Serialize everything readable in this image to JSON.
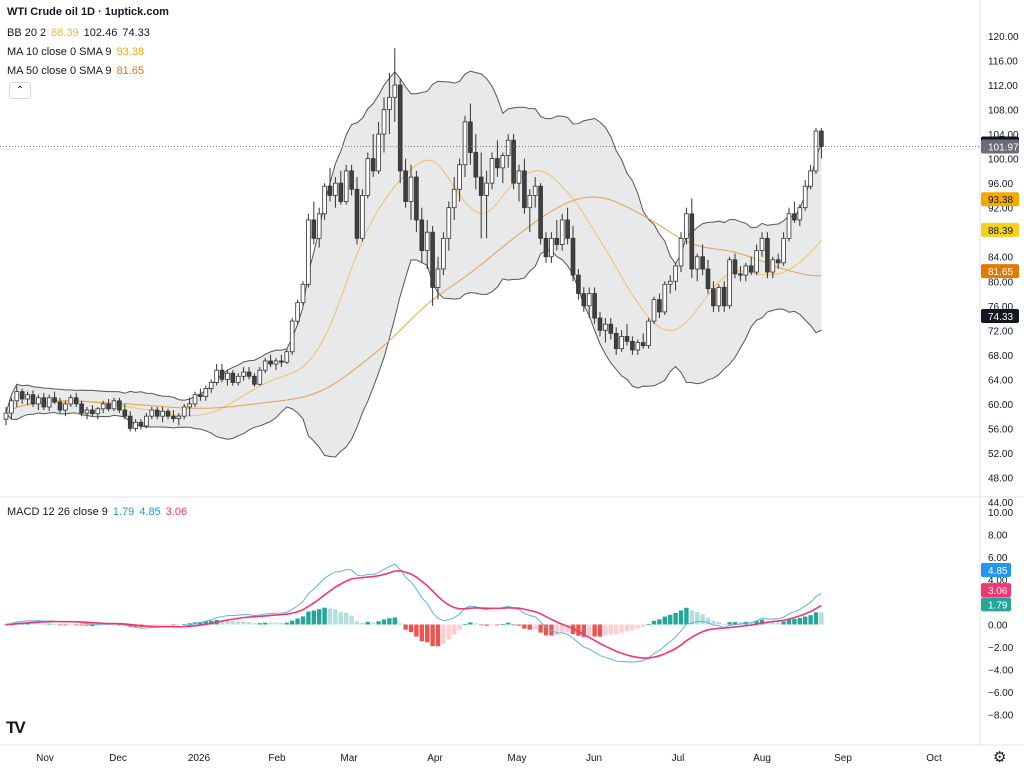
{
  "header": {
    "title": "WTI Crude oil  1D · 1uptick.com"
  },
  "legends": {
    "bb": {
      "name": "BB 20 2",
      "values": [
        "88.39",
        "102.46",
        "74.33"
      ],
      "colors": [
        "#f0b643",
        "#131722",
        "#131722"
      ]
    },
    "ma10": {
      "name": "MA 10 close 0 SMA 9",
      "value": "93.38",
      "color": "#f2a900"
    },
    "ma50": {
      "name": "MA 50 close 0 SMA 9",
      "value": "81.65",
      "color": "#e07b00"
    },
    "macd": {
      "name": "MACD 12 26 close 9",
      "values": [
        "1.79",
        "4.85",
        "3.06"
      ],
      "colors": [
        "#26a69a",
        "#2196f3",
        "#f23672"
      ]
    }
  },
  "controls": {
    "collapse_glyph": "⌃"
  },
  "branding": {
    "logo_text": "TV",
    "settings_icon": "gear-icon"
  },
  "colors": {
    "up": "#ffffff",
    "down": "#404040",
    "wick": "#333333",
    "bb_fill": "#e4e5e6",
    "bb_line": "#555555",
    "ma10": "#f2c061",
    "ma50": "#e3a14d",
    "macd": "#5ab4ea",
    "signal": "#f23672",
    "hist_up_strong": "#26a69a",
    "hist_up_weak": "#b2dfdb",
    "hist_down_strong": "#ef5350",
    "hist_down_weak": "#ffcdd2"
  },
  "chart_data": [
    {
      "type": "candlestick",
      "title": "WTI Crude oil 1D",
      "y_ticks": [
        "120.00",
        "116.00",
        "112.00",
        "108.00",
        "104.00",
        "100.00",
        "96.00",
        "92.00",
        "88.00",
        "84.00",
        "80.00",
        "76.00",
        "72.00",
        "68.00",
        "64.00",
        "60.00",
        "56.00",
        "52.00",
        "48.00",
        "44.00"
      ],
      "ylim": [
        44,
        120
      ],
      "x_ticks": [
        "Nov",
        "Dec",
        "2026",
        "Feb",
        "Mar",
        "Apr",
        "May",
        "Jun",
        "Jul",
        "Aug",
        "Sep",
        "Oct"
      ],
      "price_labels": [
        {
          "text": "102.46",
          "value": 102.46,
          "bg": "#131722",
          "fg": "#ffffff"
        },
        {
          "text": "101.97",
          "value": 101.97,
          "bg": "#6a6d78",
          "fg": "#ffffff"
        },
        {
          "text": "93.38",
          "value": 93.38,
          "bg": "#f2a900",
          "fg": "#131722"
        },
        {
          "text": "88.39",
          "value": 88.39,
          "bg": "#f5d11d",
          "fg": "#131722"
        },
        {
          "text": "81.65",
          "value": 81.65,
          "bg": "#e07b00",
          "fg": "#ffffff"
        },
        {
          "text": "74.33",
          "value": 74.33,
          "bg": "#131722",
          "fg": "#ffffff"
        }
      ],
      "last_close": 101.97,
      "candles": [
        {
          "o": 57.5,
          "h": 59.5,
          "l": 56.5,
          "c": 58.5
        },
        {
          "o": 58.5,
          "h": 61.0,
          "l": 57.5,
          "c": 60.5
        },
        {
          "o": 60.5,
          "h": 63.0,
          "l": 59.5,
          "c": 62.0
        },
        {
          "o": 62.0,
          "h": 62.5,
          "l": 60.0,
          "c": 60.8
        },
        {
          "o": 60.8,
          "h": 62.0,
          "l": 59.8,
          "c": 61.5
        },
        {
          "o": 61.5,
          "h": 62.2,
          "l": 59.5,
          "c": 60.0
        },
        {
          "o": 60.0,
          "h": 61.5,
          "l": 59.0,
          "c": 61.0
        },
        {
          "o": 61.0,
          "h": 61.8,
          "l": 59.0,
          "c": 59.5
        },
        {
          "o": 59.5,
          "h": 61.5,
          "l": 58.8,
          "c": 61.0
        },
        {
          "o": 61.0,
          "h": 62.0,
          "l": 60.0,
          "c": 60.3
        },
        {
          "o": 60.3,
          "h": 61.0,
          "l": 58.5,
          "c": 59.0
        },
        {
          "o": 59.0,
          "h": 60.5,
          "l": 58.0,
          "c": 60.0
        },
        {
          "o": 60.0,
          "h": 61.5,
          "l": 59.5,
          "c": 61.0
        },
        {
          "o": 61.0,
          "h": 61.8,
          "l": 59.5,
          "c": 60.0
        },
        {
          "o": 60.0,
          "h": 60.5,
          "l": 58.0,
          "c": 58.5
        },
        {
          "o": 58.5,
          "h": 59.5,
          "l": 57.5,
          "c": 59.0
        },
        {
          "o": 59.0,
          "h": 59.8,
          "l": 58.0,
          "c": 58.4
        },
        {
          "o": 58.4,
          "h": 59.5,
          "l": 57.5,
          "c": 59.2
        },
        {
          "o": 59.2,
          "h": 60.5,
          "l": 58.5,
          "c": 60.0
        },
        {
          "o": 60.0,
          "h": 60.8,
          "l": 58.8,
          "c": 59.2
        },
        {
          "o": 59.2,
          "h": 61.0,
          "l": 58.8,
          "c": 60.5
        },
        {
          "o": 60.5,
          "h": 61.0,
          "l": 58.5,
          "c": 59.0
        },
        {
          "o": 59.0,
          "h": 60.0,
          "l": 57.5,
          "c": 58.0
        },
        {
          "o": 58.0,
          "h": 58.8,
          "l": 55.5,
          "c": 56.0
        },
        {
          "o": 56.0,
          "h": 57.5,
          "l": 55.5,
          "c": 57.0
        },
        {
          "o": 57.0,
          "h": 57.5,
          "l": 55.8,
          "c": 56.4
        },
        {
          "o": 56.4,
          "h": 58.5,
          "l": 56.0,
          "c": 58.0
        },
        {
          "o": 58.0,
          "h": 59.5,
          "l": 57.5,
          "c": 59.0
        },
        {
          "o": 59.0,
          "h": 59.5,
          "l": 57.5,
          "c": 58.0
        },
        {
          "o": 58.0,
          "h": 59.5,
          "l": 57.0,
          "c": 58.8
        },
        {
          "o": 58.8,
          "h": 59.2,
          "l": 57.5,
          "c": 58.0
        },
        {
          "o": 58.0,
          "h": 59.0,
          "l": 57.0,
          "c": 57.6
        },
        {
          "o": 57.6,
          "h": 58.5,
          "l": 56.5,
          "c": 58.0
        },
        {
          "o": 58.0,
          "h": 60.0,
          "l": 57.5,
          "c": 59.5
        },
        {
          "o": 59.5,
          "h": 61.0,
          "l": 58.0,
          "c": 60.0
        },
        {
          "o": 60.0,
          "h": 62.0,
          "l": 59.5,
          "c": 61.5
        },
        {
          "o": 61.5,
          "h": 62.5,
          "l": 60.5,
          "c": 61.2
        },
        {
          "o": 61.2,
          "h": 63.0,
          "l": 60.5,
          "c": 62.5
        },
        {
          "o": 62.5,
          "h": 64.0,
          "l": 61.8,
          "c": 63.5
        },
        {
          "o": 63.5,
          "h": 66.5,
          "l": 63.0,
          "c": 65.5
        },
        {
          "o": 65.5,
          "h": 66.5,
          "l": 63.5,
          "c": 64.0
        },
        {
          "o": 64.0,
          "h": 65.5,
          "l": 63.0,
          "c": 65.0
        },
        {
          "o": 65.0,
          "h": 65.5,
          "l": 63.0,
          "c": 63.5
        },
        {
          "o": 63.5,
          "h": 65.0,
          "l": 63.0,
          "c": 64.5
        },
        {
          "o": 64.5,
          "h": 66.0,
          "l": 63.8,
          "c": 65.2
        },
        {
          "o": 65.2,
          "h": 66.0,
          "l": 64.0,
          "c": 64.5
        },
        {
          "o": 64.5,
          "h": 65.0,
          "l": 62.8,
          "c": 63.2
        },
        {
          "o": 63.2,
          "h": 66.0,
          "l": 63.0,
          "c": 65.5
        },
        {
          "o": 65.5,
          "h": 67.5,
          "l": 65.0,
          "c": 67.0
        },
        {
          "o": 67.0,
          "h": 68.0,
          "l": 66.0,
          "c": 66.5
        },
        {
          "o": 66.5,
          "h": 67.5,
          "l": 65.5,
          "c": 67.0
        },
        {
          "o": 67.0,
          "h": 68.0,
          "l": 66.0,
          "c": 66.8
        },
        {
          "o": 66.8,
          "h": 69.0,
          "l": 66.5,
          "c": 68.5
        },
        {
          "o": 68.5,
          "h": 74.0,
          "l": 68.0,
          "c": 73.5
        },
        {
          "o": 73.5,
          "h": 77.0,
          "l": 73.0,
          "c": 76.5
        },
        {
          "o": 76.5,
          "h": 80.0,
          "l": 76.0,
          "c": 79.5
        },
        {
          "o": 79.5,
          "h": 91.0,
          "l": 79.0,
          "c": 90.0
        },
        {
          "o": 90.0,
          "h": 93.0,
          "l": 86.0,
          "c": 87.0
        },
        {
          "o": 87.0,
          "h": 92.0,
          "l": 85.5,
          "c": 91.0
        },
        {
          "o": 91.0,
          "h": 96.0,
          "l": 90.0,
          "c": 95.5
        },
        {
          "o": 95.5,
          "h": 98.5,
          "l": 93.0,
          "c": 94.0
        },
        {
          "o": 94.0,
          "h": 97.0,
          "l": 92.0,
          "c": 96.0
        },
        {
          "o": 96.0,
          "h": 98.0,
          "l": 92.5,
          "c": 93.0
        },
        {
          "o": 93.0,
          "h": 99.0,
          "l": 92.5,
          "c": 98.0
        },
        {
          "o": 98.0,
          "h": 99.0,
          "l": 94.0,
          "c": 95.0
        },
        {
          "o": 95.0,
          "h": 97.0,
          "l": 86.0,
          "c": 87.0
        },
        {
          "o": 87.0,
          "h": 95.0,
          "l": 86.5,
          "c": 94.0
        },
        {
          "o": 94.0,
          "h": 101.0,
          "l": 93.5,
          "c": 100.0
        },
        {
          "o": 100.0,
          "h": 104.0,
          "l": 97.0,
          "c": 98.0
        },
        {
          "o": 98.0,
          "h": 106.0,
          "l": 97.5,
          "c": 104.0
        },
        {
          "o": 104.0,
          "h": 110.0,
          "l": 101.0,
          "c": 108.0
        },
        {
          "o": 108.0,
          "h": 114.0,
          "l": 104.0,
          "c": 110.0
        },
        {
          "o": 110.0,
          "h": 118.0,
          "l": 106.0,
          "c": 112.0
        },
        {
          "o": 112.0,
          "h": 113.0,
          "l": 96.0,
          "c": 98.0
        },
        {
          "o": 98.0,
          "h": 100.0,
          "l": 92.0,
          "c": 93.0
        },
        {
          "o": 93.0,
          "h": 99.0,
          "l": 90.0,
          "c": 97.0
        },
        {
          "o": 97.0,
          "h": 98.0,
          "l": 88.0,
          "c": 90.0
        },
        {
          "o": 90.0,
          "h": 92.0,
          "l": 83.0,
          "c": 85.0
        },
        {
          "o": 85.0,
          "h": 90.0,
          "l": 82.0,
          "c": 88.0
        },
        {
          "o": 88.0,
          "h": 89.0,
          "l": 76.0,
          "c": 79.0
        },
        {
          "o": 79.0,
          "h": 84.0,
          "l": 77.0,
          "c": 82.0
        },
        {
          "o": 82.0,
          "h": 88.0,
          "l": 81.0,
          "c": 87.0
        },
        {
          "o": 87.0,
          "h": 93.0,
          "l": 85.0,
          "c": 92.0
        },
        {
          "o": 92.0,
          "h": 97.0,
          "l": 90.0,
          "c": 95.0
        },
        {
          "o": 95.0,
          "h": 100.0,
          "l": 93.0,
          "c": 99.0
        },
        {
          "o": 99.0,
          "h": 107.0,
          "l": 97.0,
          "c": 106.0
        },
        {
          "o": 106.0,
          "h": 109.0,
          "l": 99.0,
          "c": 101.0
        },
        {
          "o": 101.0,
          "h": 104.0,
          "l": 95.0,
          "c": 97.0
        },
        {
          "o": 97.0,
          "h": 101.0,
          "l": 87.0,
          "c": 94.0
        },
        {
          "o": 94.0,
          "h": 98.0,
          "l": 87.0,
          "c": 96.0
        },
        {
          "o": 96.0,
          "h": 101.0,
          "l": 95.0,
          "c": 100.0
        },
        {
          "o": 100.0,
          "h": 103.0,
          "l": 97.0,
          "c": 98.5
        },
        {
          "o": 98.5,
          "h": 101.0,
          "l": 96.0,
          "c": 100.5
        },
        {
          "o": 100.5,
          "h": 104.0,
          "l": 98.5,
          "c": 103.0
        },
        {
          "o": 103.0,
          "h": 104.0,
          "l": 95.0,
          "c": 96.0
        },
        {
          "o": 96.0,
          "h": 99.0,
          "l": 93.0,
          "c": 98.0
        },
        {
          "o": 98.0,
          "h": 100.0,
          "l": 91.0,
          "c": 92.0
        },
        {
          "o": 92.0,
          "h": 95.0,
          "l": 88.0,
          "c": 94.0
        },
        {
          "o": 94.0,
          "h": 97.0,
          "l": 92.0,
          "c": 95.5
        },
        {
          "o": 95.5,
          "h": 96.0,
          "l": 86.0,
          "c": 87.0
        },
        {
          "o": 87.0,
          "h": 88.0,
          "l": 83.0,
          "c": 84.0
        },
        {
          "o": 84.0,
          "h": 88.0,
          "l": 83.0,
          "c": 87.0
        },
        {
          "o": 87.0,
          "h": 90.0,
          "l": 85.0,
          "c": 86.0
        },
        {
          "o": 86.0,
          "h": 91.0,
          "l": 85.0,
          "c": 90.0
        },
        {
          "o": 90.0,
          "h": 92.0,
          "l": 86.0,
          "c": 87.0
        },
        {
          "o": 87.0,
          "h": 89.0,
          "l": 80.0,
          "c": 81.0
        },
        {
          "o": 81.0,
          "h": 82.0,
          "l": 77.0,
          "c": 78.0
        },
        {
          "o": 78.0,
          "h": 79.0,
          "l": 75.0,
          "c": 76.0
        },
        {
          "o": 76.0,
          "h": 79.0,
          "l": 74.0,
          "c": 78.0
        },
        {
          "o": 78.0,
          "h": 79.0,
          "l": 73.0,
          "c": 74.0
        },
        {
          "o": 74.0,
          "h": 75.0,
          "l": 71.0,
          "c": 72.0
        },
        {
          "o": 72.0,
          "h": 74.0,
          "l": 70.0,
          "c": 73.0
        },
        {
          "o": 73.0,
          "h": 74.0,
          "l": 70.5,
          "c": 71.5
        },
        {
          "o": 71.5,
          "h": 72.5,
          "l": 68.0,
          "c": 69.0
        },
        {
          "o": 69.0,
          "h": 72.0,
          "l": 68.5,
          "c": 71.0
        },
        {
          "o": 71.0,
          "h": 73.0,
          "l": 69.5,
          "c": 70.2
        },
        {
          "o": 70.2,
          "h": 71.0,
          "l": 68.0,
          "c": 68.8
        },
        {
          "o": 68.8,
          "h": 70.5,
          "l": 68.0,
          "c": 70.0
        },
        {
          "o": 70.0,
          "h": 71.5,
          "l": 69.0,
          "c": 69.5
        },
        {
          "o": 69.5,
          "h": 74.0,
          "l": 69.0,
          "c": 73.5
        },
        {
          "o": 73.5,
          "h": 77.5,
          "l": 73.0,
          "c": 77.0
        },
        {
          "o": 77.0,
          "h": 78.0,
          "l": 74.0,
          "c": 75.0
        },
        {
          "o": 75.0,
          "h": 80.0,
          "l": 74.5,
          "c": 79.5
        },
        {
          "o": 79.5,
          "h": 81.0,
          "l": 78.0,
          "c": 80.0
        },
        {
          "o": 80.0,
          "h": 83.0,
          "l": 78.5,
          "c": 82.5
        },
        {
          "o": 82.5,
          "h": 88.0,
          "l": 81.5,
          "c": 87.0
        },
        {
          "o": 87.0,
          "h": 92.0,
          "l": 86.0,
          "c": 91.0
        },
        {
          "o": 91.0,
          "h": 93.5,
          "l": 80.5,
          "c": 82.0
        },
        {
          "o": 82.0,
          "h": 84.5,
          "l": 80.0,
          "c": 84.0
        },
        {
          "o": 84.0,
          "h": 86.0,
          "l": 81.0,
          "c": 82.0
        },
        {
          "o": 82.0,
          "h": 83.5,
          "l": 78.0,
          "c": 78.8
        },
        {
          "o": 78.8,
          "h": 80.0,
          "l": 75.0,
          "c": 76.0
        },
        {
          "o": 76.0,
          "h": 79.5,
          "l": 75.0,
          "c": 79.0
        },
        {
          "o": 79.0,
          "h": 80.0,
          "l": 75.0,
          "c": 76.0
        },
        {
          "o": 76.0,
          "h": 84.0,
          "l": 75.5,
          "c": 83.5
        },
        {
          "o": 83.5,
          "h": 84.5,
          "l": 80.5,
          "c": 81.2
        },
        {
          "o": 81.2,
          "h": 82.5,
          "l": 80.0,
          "c": 81.0
        },
        {
          "o": 81.0,
          "h": 83.0,
          "l": 80.0,
          "c": 82.5
        },
        {
          "o": 82.5,
          "h": 84.0,
          "l": 81.0,
          "c": 81.5
        },
        {
          "o": 81.5,
          "h": 86.0,
          "l": 81.0,
          "c": 85.0
        },
        {
          "o": 85.0,
          "h": 88.0,
          "l": 84.0,
          "c": 87.0
        },
        {
          "o": 87.0,
          "h": 88.0,
          "l": 80.5,
          "c": 81.5
        },
        {
          "o": 81.5,
          "h": 84.0,
          "l": 80.5,
          "c": 83.5
        },
        {
          "o": 83.5,
          "h": 84.5,
          "l": 82.0,
          "c": 83.0
        },
        {
          "o": 83.0,
          "h": 88.0,
          "l": 82.5,
          "c": 87.0
        },
        {
          "o": 87.0,
          "h": 92.0,
          "l": 86.5,
          "c": 91.0
        },
        {
          "o": 91.0,
          "h": 93.0,
          "l": 89.5,
          "c": 90.0
        },
        {
          "o": 90.0,
          "h": 92.5,
          "l": 89.0,
          "c": 92.0
        },
        {
          "o": 92.0,
          "h": 96.5,
          "l": 91.5,
          "c": 95.5
        },
        {
          "o": 95.5,
          "h": 99.0,
          "l": 95.0,
          "c": 98.0
        },
        {
          "o": 98.0,
          "h": 105.0,
          "l": 97.5,
          "c": 104.5
        },
        {
          "o": 104.5,
          "h": 105.0,
          "l": 100.0,
          "c": 101.97
        }
      ]
    },
    {
      "type": "macd",
      "title": "MACD 12 26 close 9",
      "y_ticks": [
        "10.00",
        "8.00",
        "6.00",
        "4.00",
        "2.00",
        "0.00",
        "−2.00",
        "−4.00",
        "−6.00",
        "−8.00"
      ],
      "ylim": [
        -8,
        10
      ],
      "value_labels": [
        {
          "text": "4.85",
          "value": 4.85,
          "bg": "#2196f3",
          "fg": "#ffffff"
        },
        {
          "text": "3.06",
          "value": 3.06,
          "bg": "#f23672",
          "fg": "#ffffff"
        },
        {
          "text": "1.79",
          "value": 1.79,
          "bg": "#26a69a",
          "fg": "#ffffff"
        }
      ]
    }
  ]
}
